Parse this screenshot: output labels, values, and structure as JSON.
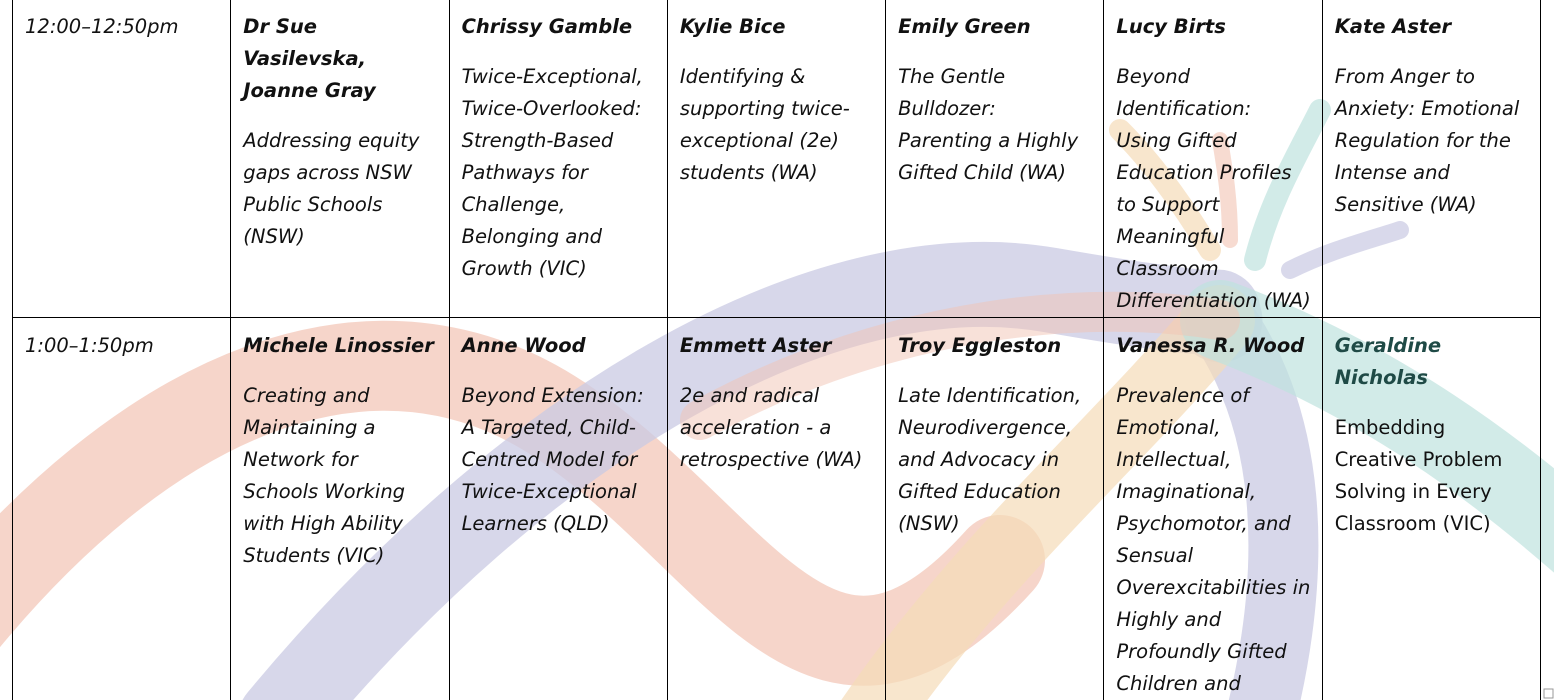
{
  "table": {
    "rows": [
      {
        "time": "12:00–12:50pm",
        "sessions": [
          {
            "speaker": "Dr Sue Vasilevska, Joanne Gray",
            "title": "Addressing equity gaps across NSW Public Schools (NSW)"
          },
          {
            "speaker": "Chrissy Gamble",
            "title": "Twice-Exceptional, Twice-Overlooked: Strength-Based Pathways for Challenge, Belonging and Growth (VIC)"
          },
          {
            "speaker": "Kylie Bice",
            "title": "Identifying & supporting twice-exceptional (2e) students (WA)"
          },
          {
            "speaker": "Emily Green",
            "title": "The Gentle Bulldozer: Parenting a Highly Gifted Child (WA)"
          },
          {
            "speaker": "Lucy Birts",
            "title": "Beyond Identification: Using Gifted Education Profiles to Support Meaningful Classroom Differentiation (WA)"
          },
          {
            "speaker": "Kate Aster",
            "title": "From Anger to Anxiety: Emotional Regulation for the Intense and Sensitive (WA)"
          }
        ]
      },
      {
        "time": "1:00–1:50pm",
        "sessions": [
          {
            "speaker": "Michele Linossier",
            "title": "Creating and Maintaining a Network for Schools Working with High Ability Students (VIC)"
          },
          {
            "speaker": "Anne Wood",
            "title": "Beyond Extension: A Targeted, Child-Centred Model for Twice-Exceptional Learners (QLD)"
          },
          {
            "speaker": "Emmett Aster",
            "title": "2e and radical acceleration - a retrospective (WA)"
          },
          {
            "speaker": "Troy Eggleston",
            "title": "Late Identification, Neurodivergence, and Advocacy in Gifted Education (NSW)"
          },
          {
            "speaker": "Vanessa R. Wood",
            "title": "Prevalence of Emotional, Intellectual, Imaginational, Psychomotor, and Sensual Overexcitabilities in Highly and Profoundly Gifted Children and Adolescents (USA )"
          },
          {
            "speaker": "Geraldine Nicholas",
            "title": "Embedding Creative Problem Solving in Every Classroom (VIC)"
          }
        ]
      }
    ]
  }
}
